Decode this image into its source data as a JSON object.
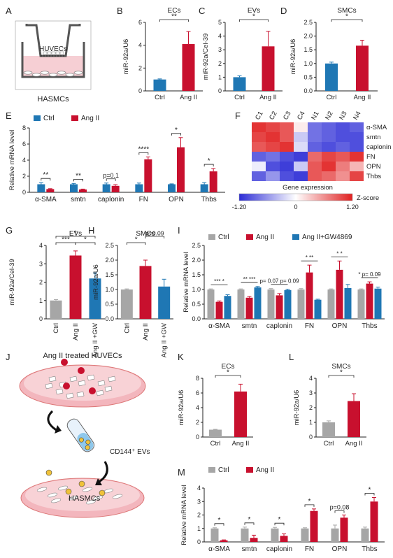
{
  "panels": {
    "A": {
      "letter": "A",
      "top_label": "HUVECs",
      "bottom_label": "HASMCs"
    },
    "J": {
      "letter": "J",
      "title": "Ang II treated HUVECs",
      "ev_label": "CD144⁺ EVs",
      "cells_label": "HASMCs"
    }
  },
  "colors": {
    "ctrl": "#1f77b4",
    "angii": "#c8102e",
    "gw": "#1f77b4",
    "gray": "#a6a6a6",
    "heat_low": "#2c2cd6",
    "heat_high": "#e02020"
  },
  "chart_data": [
    {
      "id": "B",
      "letter": "B",
      "type": "bar",
      "title": "ECs",
      "ylabel": "miR-92a/U6",
      "ylim": [
        0,
        6
      ],
      "yticks": [
        "0",
        "2",
        "4",
        "6"
      ],
      "categories": [
        "Ctrl",
        "Ang II"
      ],
      "values": [
        1.0,
        4.1
      ],
      "errors": [
        0.05,
        1.1
      ],
      "colors": [
        "ctrl",
        "angii"
      ],
      "sig": [
        {
          "from": 0,
          "to": 1,
          "label": "**"
        }
      ]
    },
    {
      "id": "C",
      "letter": "C",
      "type": "bar",
      "title": "EVs",
      "ylabel": "miR-92a/Cel-39",
      "ylim": [
        0,
        5
      ],
      "yticks": [
        "0",
        "1",
        "2",
        "3",
        "4",
        "5"
      ],
      "categories": [
        "Ctrl",
        "Ang II"
      ],
      "values": [
        1.0,
        3.25
      ],
      "errors": [
        0.1,
        1.1
      ],
      "colors": [
        "ctrl",
        "angii"
      ],
      "sig": [
        {
          "from": 0,
          "to": 1,
          "label": "*"
        }
      ]
    },
    {
      "id": "D",
      "letter": "D",
      "type": "bar",
      "title": "SMCs",
      "ylabel": "miR-92a/U6",
      "ylim": [
        0,
        2.5
      ],
      "yticks": [
        "0.0",
        "0.5",
        "1.0",
        "1.5",
        "2.0",
        "2.5"
      ],
      "categories": [
        "Ctrl",
        "Ang II"
      ],
      "values": [
        1.0,
        1.65
      ],
      "errors": [
        0.05,
        0.2
      ],
      "colors": [
        "ctrl",
        "angii"
      ],
      "sig": [
        {
          "from": 0,
          "to": 1,
          "label": "*"
        }
      ]
    },
    {
      "id": "E",
      "letter": "E",
      "type": "bar",
      "ylabel": "Relative mRNA level",
      "ylim": [
        0,
        8
      ],
      "yticks": [
        "0",
        "2",
        "4",
        "6",
        "8"
      ],
      "legend": [
        "Ctrl",
        "Ang II"
      ],
      "legend_colors": [
        "ctrl",
        "angii"
      ],
      "categories": [
        "α-SMA",
        "smtn",
        "caplonin",
        "FN",
        "OPN",
        "Thbs"
      ],
      "series": [
        {
          "name": "Ctrl",
          "values": [
            1.0,
            1.0,
            1.0,
            1.0,
            1.0,
            1.0
          ],
          "errors": [
            0.2,
            0.1,
            0.15,
            0.15,
            0.05,
            0.2
          ],
          "color": "ctrl"
        },
        {
          "name": "Ang II",
          "values": [
            0.4,
            0.35,
            0.8,
            4.1,
            5.6,
            2.6
          ],
          "errors": [
            0.05,
            0.05,
            0.15,
            0.3,
            1.2,
            0.35
          ],
          "color": "angii"
        }
      ],
      "sig": [
        {
          "cat": 0,
          "label": "**"
        },
        {
          "cat": 1,
          "label": "**"
        },
        {
          "cat": 2,
          "label": "p=0.1"
        },
        {
          "cat": 3,
          "label": "****"
        },
        {
          "cat": 4,
          "label": "*"
        },
        {
          "cat": 5,
          "label": "*"
        }
      ]
    },
    {
      "id": "F",
      "letter": "F",
      "type": "heatmap",
      "columns": [
        "C1",
        "C2",
        "C3",
        "C4",
        "N1",
        "N2",
        "N3",
        "N4"
      ],
      "rows": [
        "α-SMA",
        "smtn",
        "caplonin",
        "FN",
        "OPN",
        "Thbs"
      ],
      "values": [
        [
          1.1,
          1.0,
          0.9,
          0.1,
          -0.8,
          -0.9,
          -1.0,
          -0.9
        ],
        [
          1.0,
          1.1,
          0.9,
          -0.3,
          -0.8,
          -0.9,
          -1.0,
          -1.0
        ],
        [
          0.9,
          1.0,
          1.1,
          -0.2,
          -0.9,
          -1.0,
          -0.9,
          -1.0
        ],
        [
          -0.9,
          -0.8,
          -1.0,
          -1.1,
          0.8,
          1.0,
          0.9,
          1.1
        ],
        [
          -0.1,
          -1.0,
          -1.1,
          -0.3,
          0.9,
          1.1,
          0.7,
          0.4
        ],
        [
          -0.9,
          -0.6,
          -1.0,
          -1.1,
          0.9,
          0.8,
          0.6,
          1.0
        ]
      ],
      "colorbar_title": "Gene expression",
      "colorbar_label": "Z-score",
      "colorbar_ticks": [
        "-1.20",
        "0",
        "1.20"
      ],
      "range": [
        -1.2,
        1.2
      ]
    },
    {
      "id": "G",
      "letter": "G",
      "type": "bar",
      "title": "EVs",
      "ylabel": "miR-92a/Cel-39",
      "ylim": [
        0,
        4
      ],
      "yticks": [
        "0",
        "1",
        "2",
        "3",
        "4"
      ],
      "categories": [
        "Ctrl",
        "Ang II",
        "Ang II +GW"
      ],
      "values": [
        1.0,
        3.45,
        2.2
      ],
      "errors": [
        0.05,
        0.25,
        0.3
      ],
      "colors": [
        "gray",
        "angii",
        "gw"
      ],
      "sig": [
        {
          "from": 0,
          "to": 1,
          "label": "***",
          "level": 0
        },
        {
          "from": 1,
          "to": 2,
          "label": "*",
          "level": 0
        },
        {
          "from": 0,
          "to": 2,
          "label": "*",
          "level": 1
        }
      ]
    },
    {
      "id": "H",
      "letter": "H",
      "type": "bar",
      "title": "SMCs",
      "ylabel": "miR-92a/U6",
      "ylim": [
        0,
        2.5
      ],
      "yticks": [
        "0.0",
        "0.5",
        "1.0",
        "1.5",
        "2.0",
        "2.5"
      ],
      "categories": [
        "Ctrl",
        "Ang II",
        "Ang II +GW"
      ],
      "values": [
        1.0,
        1.8,
        1.1
      ],
      "errors": [
        0.02,
        0.2,
        0.25
      ],
      "colors": [
        "gray",
        "angii",
        "gw"
      ],
      "sig": [
        {
          "from": 0,
          "to": 1,
          "label": "*",
          "level": 0
        },
        {
          "from": 1,
          "to": 2,
          "label": "p=0.09",
          "level": 1
        }
      ]
    },
    {
      "id": "I",
      "letter": "I",
      "type": "bar",
      "ylabel": "Relative mRNA level",
      "ylim": [
        0,
        2.5
      ],
      "yticks": [
        "0.0",
        "0.5",
        "1.0",
        "1.5",
        "2.0",
        "2.5"
      ],
      "legend": [
        "Ctrl",
        "Ang II",
        "Ang II+GW4869"
      ],
      "legend_colors": [
        "gray",
        "angii",
        "gw"
      ],
      "categories": [
        "α-SMA",
        "smtn",
        "caplonin",
        "FN",
        "OPN",
        "Thbs"
      ],
      "series": [
        {
          "name": "Ctrl",
          "values": [
            1.0,
            1.0,
            1.0,
            1.0,
            1.0,
            1.0
          ],
          "errors": [
            0.02,
            0.02,
            0.03,
            0.03,
            0.02,
            0.02
          ],
          "color": "gray"
        },
        {
          "name": "Ang II",
          "values": [
            0.58,
            0.72,
            0.8,
            1.58,
            1.67,
            1.2
          ],
          "errors": [
            0.03,
            0.04,
            0.06,
            0.25,
            0.3,
            0.06
          ],
          "color": "angii"
        },
        {
          "name": "Ang II+GW4869",
          "values": [
            0.78,
            1.07,
            0.98,
            0.65,
            1.05,
            1.03
          ],
          "errors": [
            0.04,
            0.03,
            0.03,
            0.02,
            0.12,
            0.05
          ],
          "color": "gw"
        }
      ],
      "sig_text": [
        "*** *",
        "** ***",
        "p= 0.07 p= 0.09",
        "* **",
        "* *",
        "* p= 0.09"
      ]
    },
    {
      "id": "K",
      "letter": "K",
      "type": "bar",
      "title": "ECs",
      "ylabel": "miR-92a/U6",
      "ylim": [
        0,
        8
      ],
      "yticks": [
        "0",
        "2",
        "4",
        "6",
        "8"
      ],
      "categories": [
        "Ctrl",
        "Ang II"
      ],
      "values": [
        1.0,
        6.2
      ],
      "errors": [
        0.05,
        1.0
      ],
      "colors": [
        "gray",
        "angii"
      ],
      "sig": [
        {
          "from": 0,
          "to": 1,
          "label": "*"
        }
      ]
    },
    {
      "id": "L",
      "letter": "L",
      "type": "bar",
      "title": "SMCs",
      "ylabel": "miR-92a/U6",
      "ylim": [
        0,
        4
      ],
      "yticks": [
        "0",
        "1",
        "2",
        "3",
        "4"
      ],
      "categories": [
        "Ctrl",
        "Ang II"
      ],
      "values": [
        1.0,
        2.45
      ],
      "errors": [
        0.1,
        0.5
      ],
      "colors": [
        "gray",
        "angii"
      ],
      "sig": [
        {
          "from": 0,
          "to": 1,
          "label": "*"
        }
      ]
    },
    {
      "id": "M",
      "letter": "M",
      "type": "bar",
      "ylabel": "Relative mRNA level",
      "ylim": [
        0,
        4
      ],
      "yticks": [
        "0",
        "1",
        "2",
        "3",
        "4"
      ],
      "legend": [
        "Ctrl",
        "Ang II"
      ],
      "legend_colors": [
        "gray",
        "angii"
      ],
      "categories": [
        "α-SMA",
        "smtn",
        "caplonin",
        "FN",
        "OPN",
        "Thbs"
      ],
      "series": [
        {
          "name": "Ctrl",
          "values": [
            1.0,
            1.0,
            1.0,
            1.0,
            1.0,
            1.0
          ],
          "errors": [
            0.05,
            0.1,
            0.08,
            0.05,
            0.25,
            0.1
          ],
          "color": "gray"
        },
        {
          "name": "Ang II",
          "values": [
            0.12,
            0.3,
            0.45,
            2.3,
            1.8,
            3.0
          ],
          "errors": [
            0.03,
            0.2,
            0.15,
            0.15,
            0.2,
            0.3
          ],
          "color": "angii"
        }
      ],
      "sig": [
        {
          "cat": 0,
          "label": "*"
        },
        {
          "cat": 1,
          "label": "*"
        },
        {
          "cat": 2,
          "label": "*"
        },
        {
          "cat": 3,
          "label": "*"
        },
        {
          "cat": 4,
          "label": "p=0.08"
        },
        {
          "cat": 5,
          "label": "*"
        }
      ]
    }
  ]
}
